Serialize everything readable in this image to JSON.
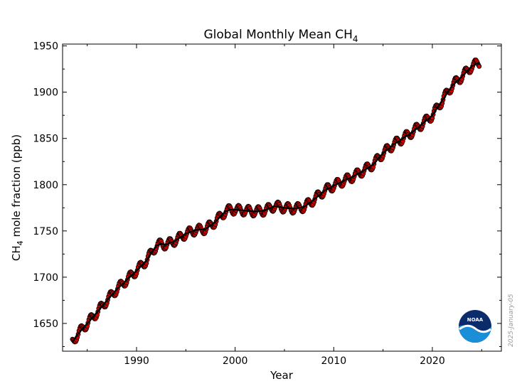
{
  "chart_data": {
    "type": "line",
    "title": "Global Monthly Mean CH",
    "title_subscript": "4",
    "xlabel": "Year",
    "ylabel_pre": "CH",
    "ylabel_sub": "4",
    "ylabel_post": " mole fraction (ppb)",
    "xlim": [
      1982.5,
      2027.0
    ],
    "ylim": [
      1620,
      1952
    ],
    "x_ticks": [
      1990,
      2000,
      2010,
      2020
    ],
    "y_ticks": [
      1650,
      1700,
      1750,
      1800,
      1850,
      1900,
      1950
    ],
    "grid": false,
    "series": [
      {
        "role": "monthly-mean",
        "color": "#cc0000",
        "marker": "circle",
        "x": [],
        "y": [],
        "anchor_years": [
          1983.5,
          1984.0,
          1985.0,
          1986.0,
          1987.0,
          1988.0,
          1989.0,
          1990.0,
          1991.0,
          1992.0,
          1992.5,
          1993.0,
          1994.0,
          1995.0,
          1996.0,
          1997.0,
          1998.0,
          1999.0,
          1999.5,
          2000.0,
          2001.0,
          2002.0,
          2003.0,
          2004.0,
          2005.0,
          2006.0,
          2007.0,
          2008.0,
          2009.0,
          2010.0,
          2011.0,
          2012.0,
          2013.0,
          2014.0,
          2015.0,
          2016.0,
          2017.0,
          2018.0,
          2019.0,
          2020.0,
          2021.0,
          2022.0,
          2023.0,
          2024.0,
          2024.75
        ],
        "anchor_values": [
          1630,
          1638,
          1650,
          1662,
          1675,
          1687,
          1697,
          1707,
          1718,
          1734,
          1736,
          1735,
          1740,
          1747,
          1751,
          1752,
          1760,
          1771,
          1773,
          1773,
          1772,
          1771,
          1772,
          1777,
          1775,
          1774,
          1776,
          1784,
          1793,
          1799,
          1804,
          1809,
          1815,
          1822,
          1834,
          1843,
          1850,
          1857,
          1866,
          1875,
          1891,
          1907,
          1917,
          1928,
          1932
        ],
        "seasonal_amplitude": 5
      },
      {
        "role": "trend",
        "color": "#000000",
        "x": [
          1983.5,
          1984.0,
          1985.0,
          1986.0,
          1987.0,
          1988.0,
          1989.0,
          1990.0,
          1991.0,
          1992.0,
          1992.5,
          1993.0,
          1994.0,
          1995.0,
          1996.0,
          1997.0,
          1998.0,
          1999.0,
          1999.5,
          2000.0,
          2001.0,
          2002.0,
          2003.0,
          2004.0,
          2005.0,
          2006.0,
          2007.0,
          2008.0,
          2009.0,
          2010.0,
          2011.0,
          2012.0,
          2013.0,
          2014.0,
          2015.0,
          2016.0,
          2017.0,
          2018.0,
          2019.0,
          2020.0,
          2021.0,
          2022.0,
          2023.0,
          2024.0,
          2024.75
        ],
        "y": [
          1630,
          1638,
          1650,
          1662,
          1675,
          1687,
          1697,
          1707,
          1718,
          1734,
          1736,
          1735,
          1740,
          1747,
          1751,
          1752,
          1760,
          1771,
          1773,
          1773,
          1772,
          1771,
          1772,
          1777,
          1775,
          1774,
          1776,
          1784,
          1793,
          1799,
          1804,
          1809,
          1815,
          1822,
          1834,
          1843,
          1850,
          1857,
          1866,
          1875,
          1891,
          1907,
          1917,
          1928,
          1932
        ]
      }
    ],
    "logo_text": "NOAA",
    "date_stamp": "2025-January-05"
  },
  "colors": {
    "monthly_points": "#cc0000",
    "trend_line": "#000000",
    "logo_dark_blue": "#0b2b6b",
    "logo_light_blue": "#1a8fd8"
  }
}
